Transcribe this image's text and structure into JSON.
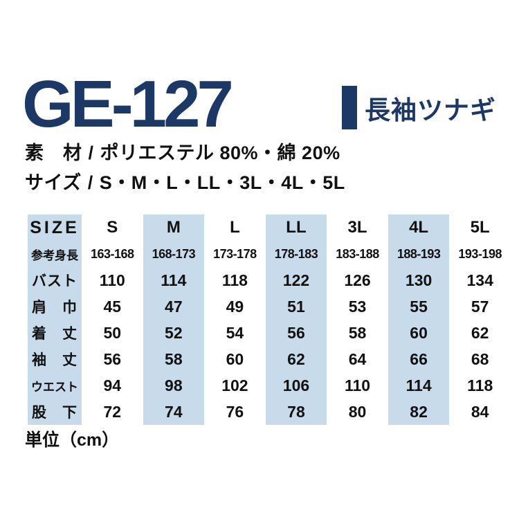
{
  "colors": {
    "navy": "#1b3866",
    "stripe_blue": "#c7dbea",
    "text_black": "#111111"
  },
  "header": {
    "product_code": "GE-127",
    "product_name": "長袖ツナギ"
  },
  "specs": {
    "material_label": "素　材",
    "separator": "/",
    "material_value": "ポリエステル 80%・綿 20%",
    "sizes_label": "サイズ",
    "sizes_value": "S・M・L・LL・3L・4L・5L"
  },
  "size_table": {
    "corner_label": "SIZE",
    "columns": [
      "S",
      "M",
      "L",
      "LL",
      "3L",
      "4L",
      "5L"
    ],
    "highlighted_columns": [
      "M",
      "LL",
      "4L"
    ],
    "rows": [
      {
        "label": "参考身長",
        "values": [
          "163-168",
          "168-173",
          "173-178",
          "178-183",
          "183-188",
          "188-193",
          "193-198"
        ]
      },
      {
        "label": "バスト",
        "values": [
          "110",
          "114",
          "118",
          "122",
          "126",
          "130",
          "134"
        ]
      },
      {
        "label": "肩　巾",
        "values": [
          "45",
          "47",
          "49",
          "51",
          "53",
          "55",
          "57"
        ]
      },
      {
        "label": "着　丈",
        "values": [
          "50",
          "52",
          "54",
          "56",
          "58",
          "60",
          "62"
        ]
      },
      {
        "label": "袖　丈",
        "values": [
          "56",
          "58",
          "60",
          "62",
          "64",
          "66",
          "68"
        ]
      },
      {
        "label": "ウエスト",
        "values": [
          "94",
          "98",
          "102",
          "106",
          "110",
          "114",
          "118"
        ]
      },
      {
        "label": "股　下",
        "values": [
          "72",
          "74",
          "76",
          "78",
          "80",
          "82",
          "84"
        ]
      }
    ]
  },
  "footer": {
    "unit_note": "単位（cm）"
  }
}
